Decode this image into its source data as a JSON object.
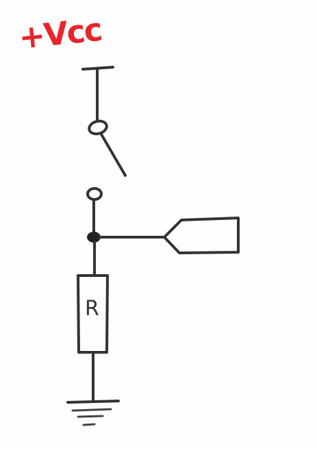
{
  "diagram": {
    "supply_label": "+Vcc",
    "resistor_label": "R",
    "colors": {
      "ink": "#333333",
      "supply_label": "#e8252a"
    }
  }
}
